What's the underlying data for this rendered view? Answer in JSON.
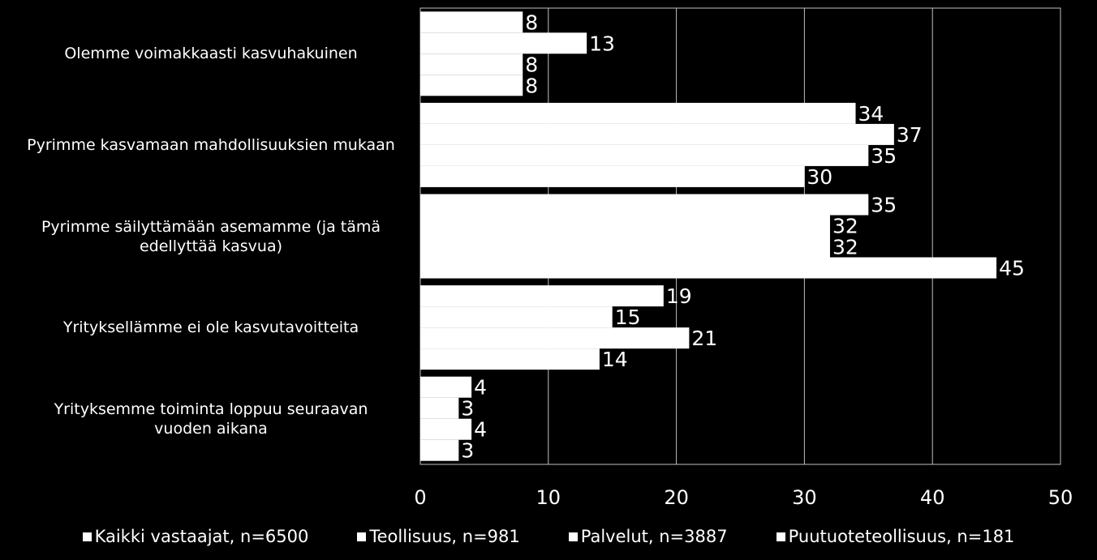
{
  "chart_data": {
    "type": "bar",
    "orientation": "horizontal",
    "categories": [
      "Olemme voimakkaasti kasvuhakuinen",
      "Pyrimme kasvamaan mahdollisuuksien mukaan",
      "Pyrimme säilyttämään asemamme (ja tämä edellyttää kasvua)",
      "Yrityksellämme ei ole kasvutavoitteita",
      "Yrityksemme toiminta loppuu seuraavan vuoden aikana"
    ],
    "category_lines": [
      [
        "Olemme voimakkaasti kasvuhakuinen"
      ],
      [
        "Pyrimme kasvamaan mahdollisuuksien mukaan"
      ],
      [
        "Pyrimme säilyttämään asemamme (ja tämä",
        "edellyttää kasvua)"
      ],
      [
        "Yrityksellämme ei ole kasvutavoitteita"
      ],
      [
        "Yrityksemme toiminta loppuu seuraavan",
        "vuoden aikana"
      ]
    ],
    "series": [
      {
        "name": "Kaikki vastaajat, n=6500",
        "values": [
          8,
          34,
          35,
          19,
          4
        ]
      },
      {
        "name": "Teollisuus, n=981",
        "values": [
          13,
          37,
          32,
          15,
          3
        ]
      },
      {
        "name": "Palvelut, n=3887",
        "values": [
          8,
          35,
          32,
          21,
          4
        ]
      },
      {
        "name": "Puutuoteteollisuus, n=181",
        "values": [
          8,
          30,
          45,
          14,
          3
        ]
      }
    ],
    "value_labels": [
      [
        "8",
        "34",
        "35",
        "19",
        "4"
      ],
      [
        "13",
        "37",
        "32",
        "15",
        "3"
      ],
      [
        "8",
        "35",
        "32",
        "21",
        "4"
      ],
      [
        "8",
        "30",
        "45",
        "14",
        "3"
      ]
    ],
    "xlim": [
      0,
      50
    ],
    "xticks": [
      0,
      10,
      20,
      30,
      40,
      50
    ],
    "xtick_labels": [
      "0",
      "10",
      "20",
      "30",
      "40",
      "50"
    ],
    "grid": true,
    "legend_position": "bottom",
    "bar_color": "#ffffff",
    "background": "#000000"
  }
}
